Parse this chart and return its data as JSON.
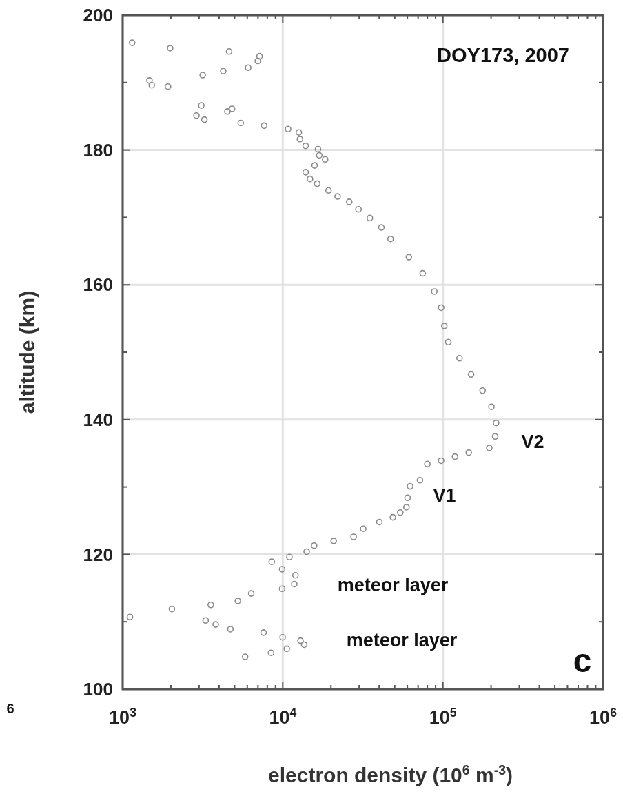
{
  "chart_data": {
    "type": "scatter",
    "xlabel": "electron density (10$^{6}$ m$^{-3}$)",
    "ylabel": "altitude (km)",
    "log": "x",
    "grid": true,
    "marker": "circle",
    "xlim": [
      1000,
      1000000
    ],
    "ylim": [
      100,
      200
    ],
    "xticks": [
      {
        "value": 1000,
        "label": "10$^{3}$"
      },
      {
        "value": 2000,
        "label": null
      },
      {
        "value": 3000,
        "label": null
      },
      {
        "value": 4000,
        "label": null
      },
      {
        "value": 5000,
        "label": null
      },
      {
        "value": 6000,
        "label": null
      },
      {
        "value": 7000,
        "label": null
      },
      {
        "value": 8000,
        "label": null
      },
      {
        "value": 9000,
        "label": null
      },
      {
        "value": 10000,
        "label": "10$^{4}$"
      },
      {
        "value": 20000,
        "label": null
      },
      {
        "value": 30000,
        "label": null
      },
      {
        "value": 40000,
        "label": null
      },
      {
        "value": 50000,
        "label": null
      },
      {
        "value": 60000,
        "label": null
      },
      {
        "value": 70000,
        "label": null
      },
      {
        "value": 80000,
        "label": null
      },
      {
        "value": 90000,
        "label": null
      },
      {
        "value": 100000,
        "label": "10$^{5}$"
      },
      {
        "value": 200000,
        "label": null
      },
      {
        "value": 300000,
        "label": null
      },
      {
        "value": 400000,
        "label": null
      },
      {
        "value": 500000,
        "label": null
      },
      {
        "value": 600000,
        "label": null
      },
      {
        "value": 700000,
        "label": null
      },
      {
        "value": 800000,
        "label": null
      },
      {
        "value": 900000,
        "label": null
      },
      {
        "value": 1000000,
        "label": "10$^{6}$"
      }
    ],
    "yticks": [
      100,
      {
        "value": 110,
        "label": null
      },
      120,
      {
        "value": 130,
        "label": null
      },
      140,
      {
        "value": 150,
        "label": null
      },
      160,
      {
        "value": 170,
        "label": null
      },
      180,
      {
        "value": 190,
        "label": null
      },
      200
    ],
    "series": [
      {
        "color": "#8a8a8a",
        "x": [
          1146,
          1980,
          4620,
          7160,
          6980,
          6080,
          4250,
          3160,
          1470,
          1520,
          1920,
          3100,
          2890,
          3240,
          4510,
          4820,
          5460,
          7650,
          10800,
          12600,
          12800,
          13900,
          16600,
          16900,
          18400,
          15800,
          13900,
          14800,
          16400,
          19300,
          22000,
          26000,
          29700,
          35000,
          41300,
          47100,
          61300,
          74800,
          88400,
          97500,
          102000,
          108000,
          127000,
          150000,
          177000,
          201000,
          215000,
          212000,
          195000,
          145000,
          119000,
          97500,
          80000,
          71900,
          62400,
          60200,
          59200,
          54200,
          48700,
          40100,
          31800,
          27700,
          20800,
          15700,
          14100,
          11000,
          8530,
          9910,
          12000,
          11800,
          9910,
          6350,
          5240,
          3550,
          2030,
          1110,
          3300,
          3810,
          4710,
          7590,
          9980,
          12900,
          13600,
          10600,
          8450,
          5820
        ],
        "values": [
          195.9,
          195.1,
          194.6,
          193.9,
          193.2,
          192.2,
          191.7,
          191.1,
          190.3,
          189.6,
          189.4,
          186.6,
          185.1,
          184.5,
          185.7,
          186.1,
          184.0,
          183.6,
          183.1,
          182.6,
          181.6,
          180.6,
          180.1,
          179.2,
          178.6,
          177.7,
          176.7,
          175.7,
          175.0,
          174.0,
          173.1,
          172.3,
          171.2,
          169.9,
          168.5,
          166.8,
          164.1,
          161.7,
          159.0,
          156.6,
          153.9,
          151.5,
          149.1,
          146.7,
          144.3,
          141.9,
          139.5,
          137.5,
          135.8,
          135.1,
          134.5,
          133.9,
          133.4,
          131.0,
          130.1,
          128.4,
          127.0,
          126.2,
          125.5,
          124.8,
          123.8,
          122.6,
          122.0,
          121.3,
          120.4,
          119.6,
          118.9,
          117.8,
          116.9,
          115.6,
          114.9,
          114.2,
          113.1,
          112.5,
          111.9,
          110.7,
          110.2,
          109.6,
          108.9,
          108.4,
          107.7,
          107.2,
          106.6,
          106.0,
          105.4,
          104.8
        ]
      }
    ],
    "annotations": [
      "DOY173, 2007",
      "c",
      "6",
      "V2",
      "V1",
      "meteor layer",
      "meteor layer"
    ]
  }
}
